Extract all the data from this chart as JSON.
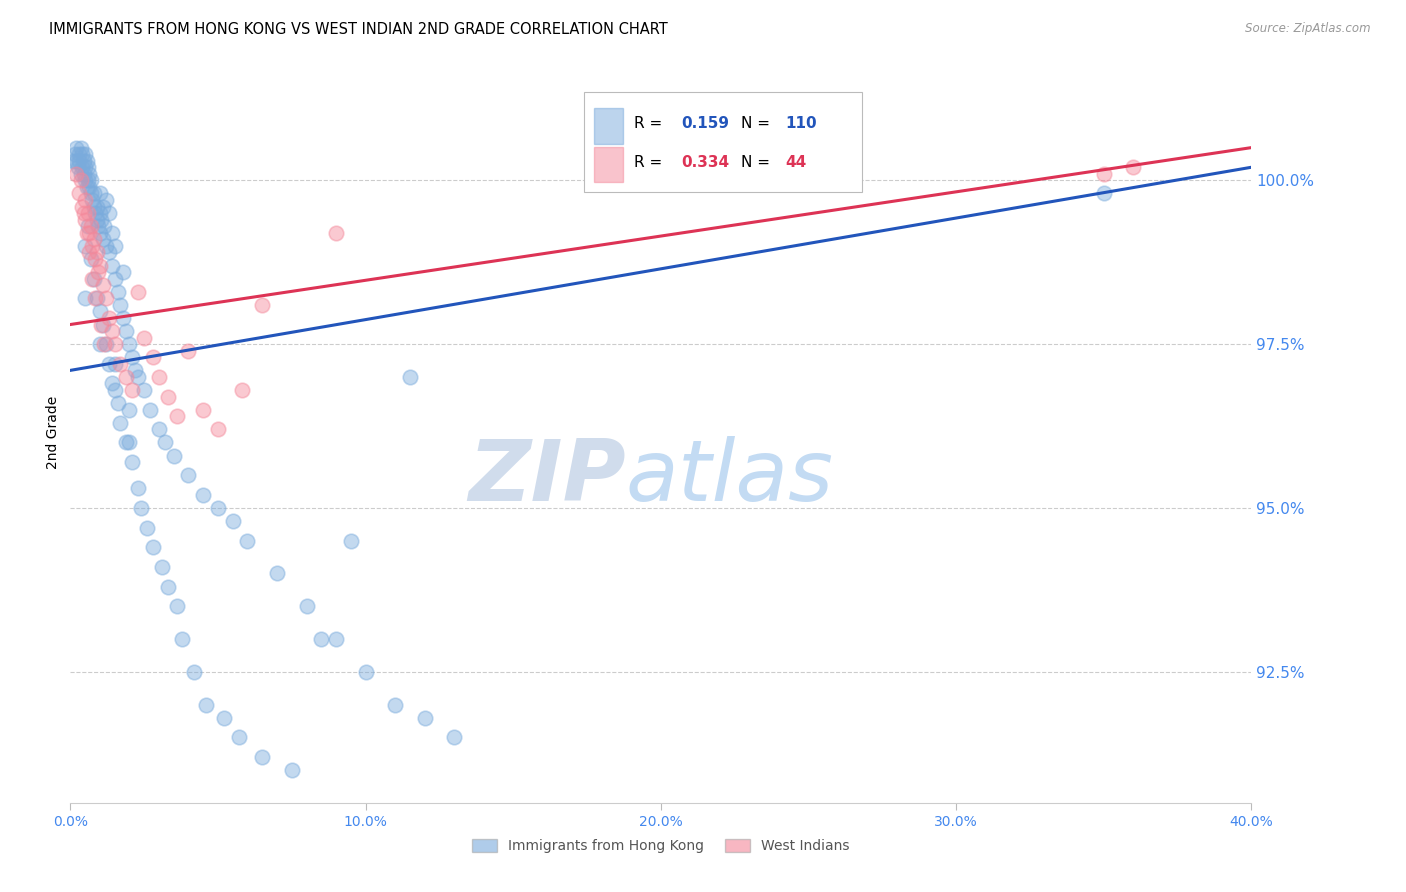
{
  "title": "IMMIGRANTS FROM HONG KONG VS WEST INDIAN 2ND GRADE CORRELATION CHART",
  "source_text": "Source: ZipAtlas.com",
  "ylabel": "2nd Grade",
  "blue_color": "#7AABDC",
  "pink_color": "#F4889A",
  "blue_line_color": "#2255BB",
  "pink_line_color": "#DD3355",
  "axis_label_color": "#4488EE",
  "watermark_zip_color": "#D0DCEC",
  "watermark_atlas_color": "#AACCEE",
  "xlim": [
    0.0,
    40.0
  ],
  "ylim": [
    90.5,
    101.8
  ],
  "yticks": [
    92.5,
    95.0,
    97.5,
    100.0
  ],
  "xticks": [
    0,
    10,
    20,
    30,
    40
  ],
  "blue_x": [
    0.1,
    0.15,
    0.2,
    0.2,
    0.25,
    0.3,
    0.3,
    0.35,
    0.35,
    0.4,
    0.4,
    0.45,
    0.45,
    0.5,
    0.5,
    0.5,
    0.55,
    0.55,
    0.6,
    0.6,
    0.65,
    0.65,
    0.7,
    0.7,
    0.75,
    0.8,
    0.8,
    0.85,
    0.9,
    0.9,
    0.95,
    1.0,
    1.0,
    1.0,
    1.05,
    1.1,
    1.1,
    1.15,
    1.2,
    1.2,
    1.3,
    1.3,
    1.4,
    1.4,
    1.5,
    1.5,
    1.6,
    1.7,
    1.8,
    1.8,
    1.9,
    2.0,
    2.1,
    2.2,
    2.3,
    2.5,
    2.7,
    3.0,
    3.2,
    3.5,
    4.0,
    4.5,
    5.0,
    5.5,
    6.0,
    7.0,
    8.0,
    9.0,
    10.0,
    11.0,
    12.0,
    13.0,
    35.0,
    1.0,
    1.0,
    1.5,
    1.5,
    2.0,
    2.0,
    0.5,
    0.5,
    0.6,
    0.7,
    0.8,
    0.9,
    1.1,
    1.2,
    1.3,
    1.4,
    1.6,
    1.7,
    1.9,
    2.1,
    2.3,
    2.4,
    2.6,
    2.8,
    3.1,
    3.3,
    3.6,
    3.8,
    4.2,
    4.6,
    5.2,
    5.7,
    6.5,
    7.5,
    8.5,
    9.5,
    11.5
  ],
  "blue_y": [
    100.3,
    100.4,
    100.3,
    100.5,
    100.2,
    100.4,
    100.3,
    100.1,
    100.5,
    100.2,
    100.4,
    100.3,
    100.1,
    100.4,
    100.2,
    100.0,
    100.3,
    99.9,
    100.2,
    100.0,
    99.9,
    100.1,
    99.8,
    100.0,
    99.7,
    99.8,
    99.6,
    99.5,
    99.6,
    99.4,
    99.3,
    99.5,
    99.2,
    99.8,
    99.4,
    99.1,
    99.6,
    99.3,
    99.0,
    99.7,
    98.9,
    99.5,
    98.7,
    99.2,
    98.5,
    99.0,
    98.3,
    98.1,
    97.9,
    98.6,
    97.7,
    97.5,
    97.3,
    97.1,
    97.0,
    96.8,
    96.5,
    96.2,
    96.0,
    95.8,
    95.5,
    95.2,
    95.0,
    94.8,
    94.5,
    94.0,
    93.5,
    93.0,
    92.5,
    92.0,
    91.8,
    91.5,
    99.8,
    98.0,
    97.5,
    97.2,
    96.8,
    96.5,
    96.0,
    98.2,
    99.0,
    99.3,
    98.8,
    98.5,
    98.2,
    97.8,
    97.5,
    97.2,
    96.9,
    96.6,
    96.3,
    96.0,
    95.7,
    95.3,
    95.0,
    94.7,
    94.4,
    94.1,
    93.8,
    93.5,
    93.0,
    92.5,
    92.0,
    91.8,
    91.5,
    91.2,
    91.0,
    93.0,
    94.5,
    97.0
  ],
  "pink_x": [
    0.2,
    0.3,
    0.35,
    0.4,
    0.5,
    0.5,
    0.6,
    0.65,
    0.7,
    0.75,
    0.8,
    0.85,
    0.9,
    0.95,
    1.0,
    1.1,
    1.2,
    1.3,
    1.4,
    1.5,
    1.7,
    1.9,
    2.1,
    2.3,
    2.5,
    2.8,
    3.0,
    3.3,
    3.6,
    4.0,
    4.5,
    5.0,
    5.8,
    6.5,
    9.0,
    35.0,
    36.0,
    0.45,
    0.55,
    0.65,
    0.75,
    0.85,
    1.05,
    1.15
  ],
  "pink_y": [
    100.1,
    99.8,
    100.0,
    99.6,
    99.7,
    99.4,
    99.5,
    99.2,
    99.3,
    99.0,
    99.1,
    98.8,
    98.9,
    98.6,
    98.7,
    98.4,
    98.2,
    97.9,
    97.7,
    97.5,
    97.2,
    97.0,
    96.8,
    98.3,
    97.6,
    97.3,
    97.0,
    96.7,
    96.4,
    97.4,
    96.5,
    96.2,
    96.8,
    98.1,
    99.2,
    100.1,
    100.2,
    99.5,
    99.2,
    98.9,
    98.5,
    98.2,
    97.8,
    97.5
  ],
  "blue_trendline_x0": 0,
  "blue_trendline_y0": 97.1,
  "blue_trendline_x1": 40,
  "blue_trendline_y1": 100.2,
  "pink_trendline_x0": 0,
  "pink_trendline_y0": 97.8,
  "pink_trendline_x1": 40,
  "pink_trendline_y1": 100.5,
  "legend_R_blue": "0.159",
  "legend_N_blue": "110",
  "legend_R_pink": "0.334",
  "legend_N_pink": "44",
  "legend_label_blue": "Immigrants from Hong Kong",
  "legend_label_pink": "West Indians"
}
